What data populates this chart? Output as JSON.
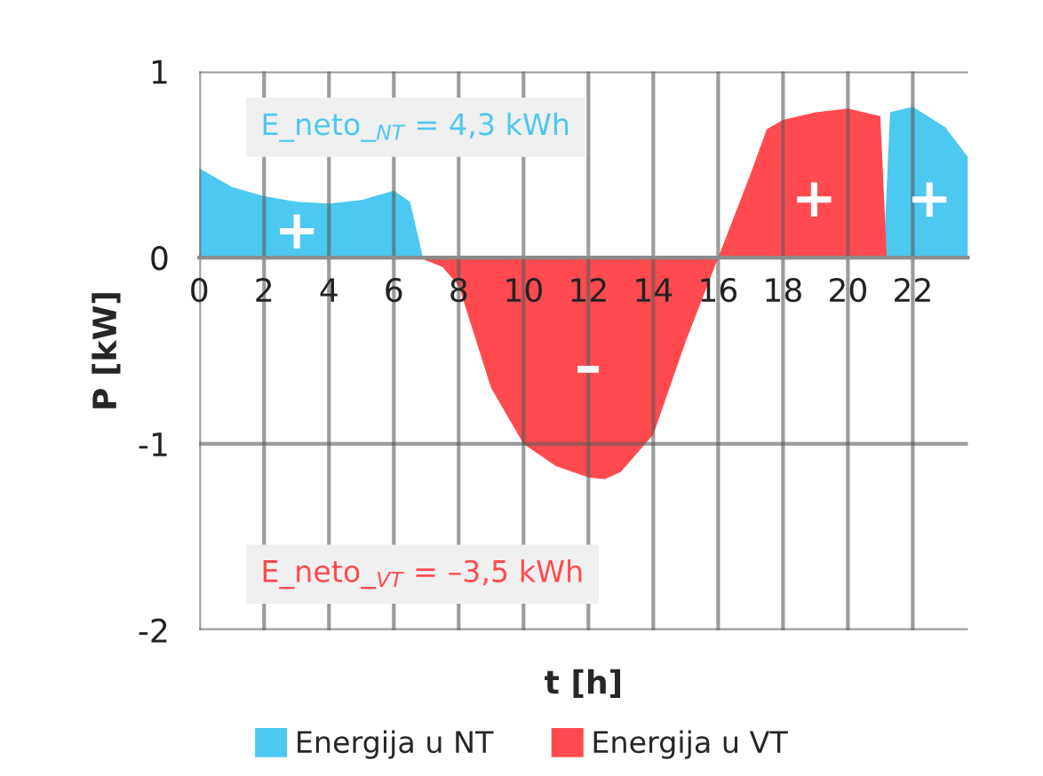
{
  "chart_data": {
    "type": "area",
    "xlabel": "t [h]",
    "ylabel": "P [kW]",
    "xlim": [
      0,
      23.7
    ],
    "ylim": [
      -2,
      1
    ],
    "xticks": [
      0,
      2,
      4,
      6,
      8,
      10,
      12,
      14,
      16,
      18,
      20,
      22
    ],
    "yticks": [
      -2,
      -1,
      0,
      1
    ],
    "grid": true,
    "legend": "bottom",
    "series": [
      {
        "name": "Energija u NT",
        "color": "#4dc8f0",
        "x": [
          0,
          1,
          2,
          3,
          4,
          5,
          6,
          6.5,
          6.9,
          14,
          21.1,
          21.3,
          22,
          23,
          23.7
        ],
        "values": [
          0.48,
          0.38,
          0.33,
          0.3,
          0.29,
          0.31,
          0.36,
          0.3,
          0,
          null,
          0,
          0.78,
          0.81,
          0.7,
          0.54
        ]
      },
      {
        "name": "Energija u VT",
        "color": "#ff4b4f",
        "x": [
          6.8,
          7.5,
          8,
          9,
          10,
          11,
          12,
          12.5,
          13,
          14,
          15,
          16,
          17,
          17.5,
          18,
          19,
          20,
          21,
          21.2
        ],
        "values": [
          0,
          -0.05,
          -0.15,
          -0.7,
          -1.0,
          -1.12,
          -1.18,
          -1.19,
          -1.15,
          -0.95,
          -0.45,
          0,
          0.45,
          0.69,
          0.74,
          0.78,
          0.8,
          0.76,
          0
        ]
      }
    ],
    "annotations": [
      "E_neto_$_{NT}$ = 4,3 kWh",
      "E_neto_$_{VT}$ = –3,5 kWh",
      "+",
      "–",
      "+",
      "+"
    ]
  }
}
